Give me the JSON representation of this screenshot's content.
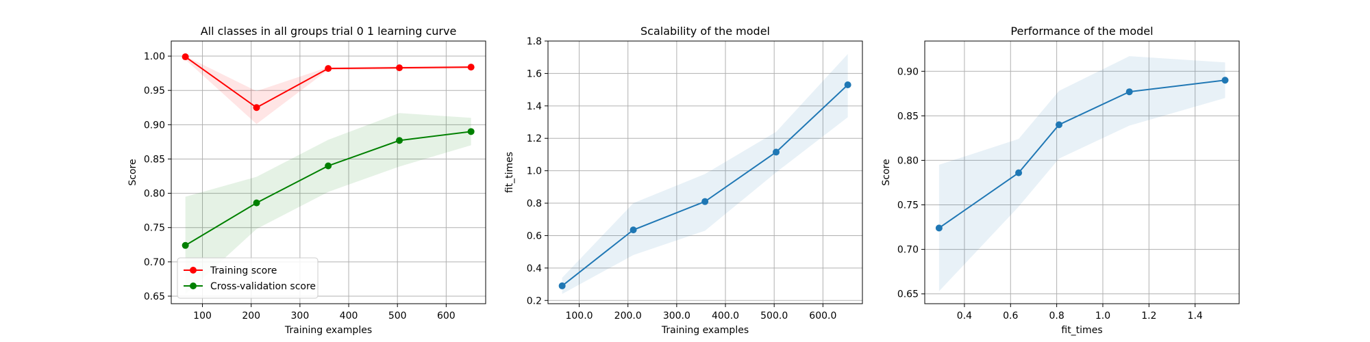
{
  "chart_data": [
    {
      "type": "line",
      "title": "All classes in all groups trial 0 1 learning curve",
      "xlabel": "Training examples",
      "ylabel": "Score",
      "xlim": [
        36,
        681
      ],
      "ylim": [
        0.639,
        1.022
      ],
      "xticks": [
        100,
        200,
        300,
        400,
        500,
        600
      ],
      "yticks": [
        0.65,
        0.7,
        0.75,
        0.8,
        0.85,
        0.9,
        0.95,
        1.0
      ],
      "tick_decimals": 2,
      "grid": true,
      "legend": "lower-left",
      "x": [
        65,
        211,
        358,
        504,
        651
      ],
      "series": [
        {
          "name": "Training score",
          "color": "#ff0000",
          "values": [
            0.999,
            0.925,
            0.982,
            0.983,
            0.984
          ],
          "band_low": [
            0.995,
            0.901,
            0.98,
            0.981,
            0.982
          ],
          "band_high": [
            1.0,
            0.949,
            0.984,
            0.985,
            0.986
          ]
        },
        {
          "name": "Cross-validation score",
          "color": "#008000",
          "values": [
            0.724,
            0.786,
            0.84,
            0.877,
            0.89
          ],
          "band_low": [
            0.653,
            0.748,
            0.802,
            0.839,
            0.87
          ],
          "band_high": [
            0.795,
            0.824,
            0.878,
            0.917,
            0.91
          ]
        }
      ]
    },
    {
      "type": "line",
      "title": "Scalability of the model",
      "xlabel": "Training examples",
      "ylabel": "fit_times",
      "xlim": [
        36,
        681
      ],
      "ylim": [
        0.18,
        1.8
      ],
      "xticks": [
        100,
        200,
        300,
        400,
        500,
        600
      ],
      "yticks": [
        0.2,
        0.4,
        0.6,
        0.8,
        1.0,
        1.2,
        1.4,
        1.6,
        1.8
      ],
      "tick_decimals": 1,
      "grid": true,
      "x": [
        65,
        211,
        358,
        504,
        651
      ],
      "series": [
        {
          "color": "#1f77b4",
          "values": [
            0.29,
            0.635,
            0.81,
            1.115,
            1.53
          ],
          "band_low": [
            0.24,
            0.48,
            0.63,
            0.99,
            1.33
          ],
          "band_high": [
            0.34,
            0.8,
            0.98,
            1.24,
            1.72
          ]
        }
      ]
    },
    {
      "type": "line",
      "title": "Performance of the model",
      "xlabel": "fit_times",
      "ylabel": "Score",
      "xlim": [
        0.228,
        1.591
      ],
      "ylim": [
        0.639,
        0.934
      ],
      "xticks": [
        0.4,
        0.6,
        0.8,
        1.0,
        1.2,
        1.4
      ],
      "yticks": [
        0.65,
        0.7,
        0.75,
        0.8,
        0.85,
        0.9
      ],
      "tick_decimals": 2,
      "grid": true,
      "x": [
        0.29,
        0.635,
        0.81,
        1.115,
        1.53
      ],
      "series": [
        {
          "color": "#1f77b4",
          "values": [
            0.724,
            0.786,
            0.84,
            0.877,
            0.89
          ],
          "band_low": [
            0.653,
            0.748,
            0.802,
            0.839,
            0.87
          ],
          "band_high": [
            0.795,
            0.824,
            0.878,
            0.917,
            0.91
          ]
        }
      ]
    }
  ]
}
